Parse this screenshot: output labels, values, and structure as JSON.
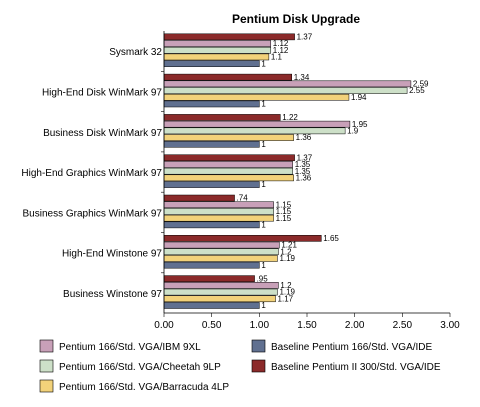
{
  "chart_data": {
    "type": "bar",
    "orientation": "horizontal",
    "title": "Pentium Disk Upgrade",
    "xlabel": "",
    "ylabel": "",
    "xlim": [
      0,
      3
    ],
    "x_ticks": [
      "0.00",
      "0.50",
      "1.00",
      "1.50",
      "2.00",
      "2.50",
      "3.00"
    ],
    "grid": false,
    "legend_position": "bottom",
    "categories": [
      "Sysmark 32",
      "High-End Disk WinMark 97",
      "Business Disk WinMark 97",
      "High-End Graphics WinMark 97",
      "Business Graphics WinMark 97",
      "High-End Winstone 97",
      "Business Winstone 97"
    ],
    "series": [
      {
        "name": "Baseline Pentium II 300/Std. VGA/IDE",
        "color": "#8b2a2a",
        "values": [
          1.37,
          1.34,
          1.22,
          1.37,
          0.74,
          1.65,
          0.95
        ],
        "labels": [
          "1.37",
          "1.34",
          "1.22",
          "1.37",
          ".74",
          "1.65",
          ".95"
        ]
      },
      {
        "name": "Pentium 166/Std. VGA/IBM 9XL",
        "color": "#c8a0b8",
        "values": [
          1.12,
          2.59,
          1.95,
          1.35,
          1.15,
          1.21,
          1.2
        ],
        "labels": [
          "1.12",
          "2.59",
          "1.95",
          "1.35",
          "1.15",
          "1.21",
          "1.2"
        ]
      },
      {
        "name": "Pentium 166/Std. VGA/Cheetah 9LP",
        "color": "#cde0c8",
        "values": [
          1.12,
          2.55,
          1.9,
          1.35,
          1.15,
          1.2,
          1.19
        ],
        "labels": [
          "1.12",
          "2.55",
          "1.9",
          "1.35",
          "1.15",
          "1.2",
          "1.19"
        ]
      },
      {
        "name": "Pentium 166/Std. VGA/Barracuda 4LP",
        "color": "#f2d27a",
        "values": [
          1.1,
          1.94,
          1.36,
          1.36,
          1.15,
          1.19,
          1.17
        ],
        "labels": [
          "1.1",
          "1.94",
          "1.36",
          "1.36",
          "1.15",
          "1.19",
          "1.17"
        ]
      },
      {
        "name": "Baseline Pentium 166/Std. VGA/IDE",
        "color": "#607090",
        "values": [
          1,
          1,
          1,
          1,
          1,
          1,
          1
        ],
        "labels": [
          "1",
          "1",
          "1",
          "1",
          "1",
          "1",
          "1"
        ]
      }
    ],
    "legend": [
      {
        "name": "Pentium 166/Std. VGA/IBM 9XL",
        "color": "#c8a0b8"
      },
      {
        "name": "Baseline Pentium 166/Std. VGA/IDE",
        "color": "#607090"
      },
      {
        "name": "Pentium 166/Std. VGA/Cheetah 9LP",
        "color": "#cde0c8"
      },
      {
        "name": "Baseline Pentium II 300/Std. VGA/IDE",
        "color": "#8b2a2a"
      },
      {
        "name": "Pentium 166/Std. VGA/Barracuda 4LP",
        "color": "#f2d27a"
      }
    ]
  }
}
